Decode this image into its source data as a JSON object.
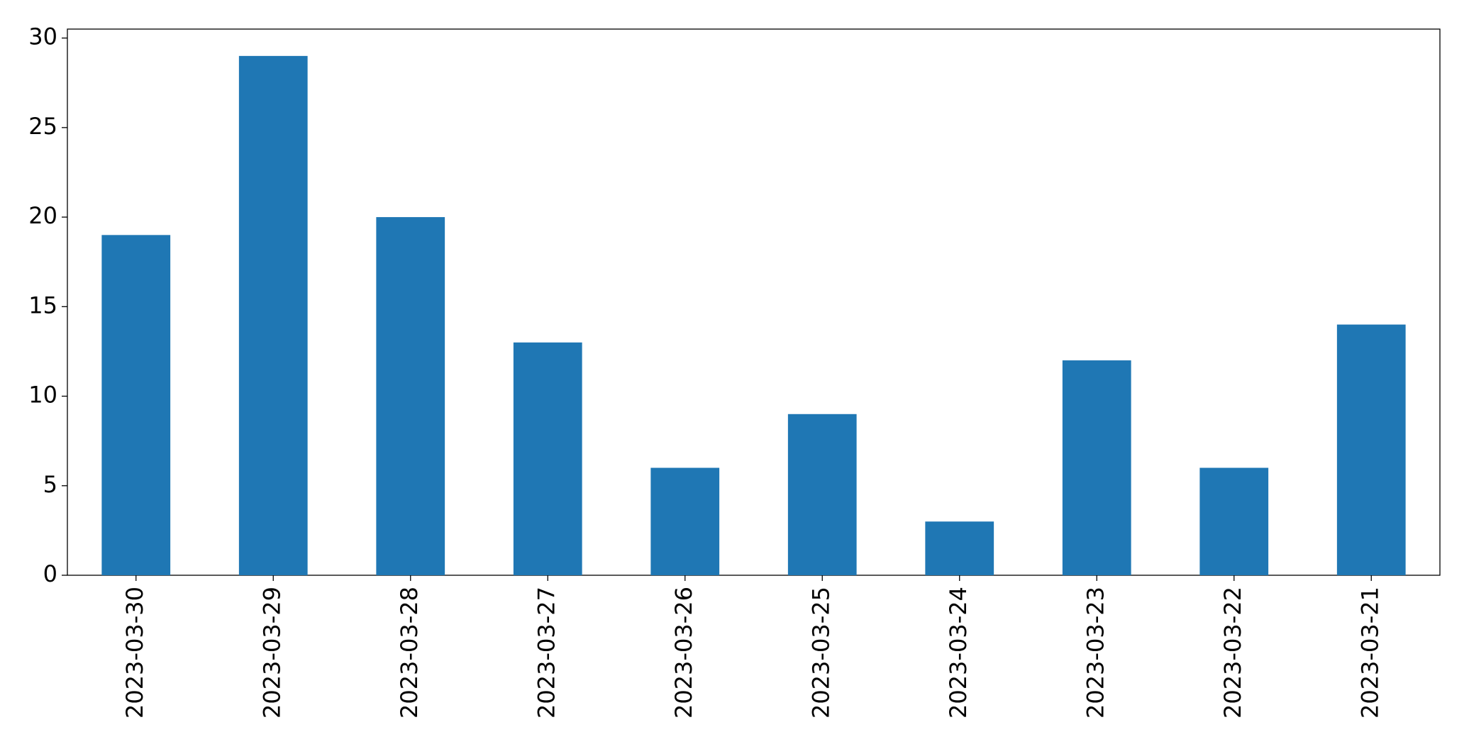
{
  "chart_data": {
    "type": "bar",
    "categories": [
      "2023-03-30",
      "2023-03-29",
      "2023-03-28",
      "2023-03-27",
      "2023-03-26",
      "2023-03-25",
      "2023-03-24",
      "2023-03-23",
      "2023-03-22",
      "2023-03-21"
    ],
    "values": [
      19,
      29,
      20,
      13,
      6,
      9,
      3,
      12,
      6,
      14
    ],
    "color": "#1f77b4",
    "ylim": [
      0,
      30.5
    ],
    "yticks": [
      0,
      5,
      10,
      15,
      20,
      25,
      30
    ],
    "grid": false
  }
}
